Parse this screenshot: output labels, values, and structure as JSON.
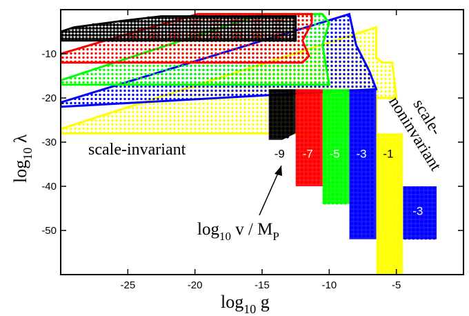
{
  "chart_data": {
    "type": "scatter",
    "xlabel": "log",
    "xlabel_sub": "10",
    "xlabel_tail": " g",
    "ylabel": "log",
    "ylabel_sub": "10",
    "ylabel_tail": " λ",
    "xlim": [
      -30,
      0
    ],
    "ylim": [
      -60,
      0
    ],
    "xticks": [
      -25,
      -20,
      -15,
      -10,
      -5
    ],
    "yticks": [
      -10,
      -20,
      -30,
      -40,
      -50
    ],
    "grid": false,
    "annotations": {
      "scale_invariant": "scale-invariant",
      "scale_noninvariant_1": "scale-",
      "scale_noninvariant_2": "noninvariant",
      "vev_main": "log",
      "vev_sub": "10",
      "vev_tail": " v / M",
      "vev_sub2": "P"
    },
    "series": [
      {
        "label": "-9",
        "color": "#000000",
        "region": [
          [
            -30,
            -5
          ],
          [
            -29,
            -4
          ],
          [
            -25.3,
            -2.5
          ],
          [
            -22.5,
            -1.5
          ],
          [
            -12.5,
            -1.5
          ],
          [
            -12.5,
            -3
          ],
          [
            -12.5,
            -7
          ],
          [
            -30,
            -7
          ]
        ],
        "dense": true,
        "block": [
          [
            -14.5,
            -18
          ],
          [
            -12.5,
            -18
          ],
          [
            -12.5,
            -28
          ],
          [
            -13.5,
            -29.5
          ],
          [
            -14.5,
            -29.5
          ]
        ]
      },
      {
        "label": "-7",
        "color": "#ff0000",
        "region": [
          [
            -30,
            -10
          ],
          [
            -25,
            -5.5
          ],
          [
            -19.8,
            -1
          ],
          [
            -11.3,
            -1
          ],
          [
            -11.3,
            -3
          ],
          [
            -12,
            -7
          ],
          [
            -11.5,
            -10.5
          ],
          [
            -12,
            -12
          ],
          [
            -30,
            -12
          ]
        ],
        "dense": false,
        "block": [
          [
            -12.5,
            -18
          ],
          [
            -10.5,
            -18
          ],
          [
            -10.5,
            -40
          ],
          [
            -12.5,
            -40
          ]
        ]
      },
      {
        "label": "-5",
        "color": "#00ff00",
        "region": [
          [
            -30,
            -16
          ],
          [
            -15,
            -1
          ],
          [
            -10.5,
            -1
          ],
          [
            -10,
            -3
          ],
          [
            -10.5,
            -8
          ],
          [
            -10,
            -17
          ],
          [
            -30,
            -17
          ]
        ],
        "dense": false,
        "block": [
          [
            -10.5,
            -18
          ],
          [
            -8.5,
            -18
          ],
          [
            -8.5,
            -44
          ],
          [
            -10.5,
            -44
          ]
        ]
      },
      {
        "label": "-3",
        "color": "#0000ff",
        "region": [
          [
            -30,
            -21
          ],
          [
            -8.5,
            -1
          ],
          [
            -8,
            -8
          ],
          [
            -7,
            -14
          ],
          [
            -6.5,
            -18
          ],
          [
            -30,
            -22
          ]
        ],
        "dense": false,
        "block": [
          [
            -8.5,
            -18
          ],
          [
            -6.5,
            -18
          ],
          [
            -6.5,
            -52
          ],
          [
            -8.5,
            -52
          ]
        ]
      },
      {
        "label": "-1",
        "color": "#ffff00",
        "region": [
          [
            -30,
            -27
          ],
          [
            -6.5,
            -4
          ],
          [
            -6.5,
            -11
          ],
          [
            -6,
            -12
          ],
          [
            -5.3,
            -12
          ],
          [
            -5,
            -20
          ],
          [
            -6.5,
            -20
          ],
          [
            -6.5,
            -28
          ],
          [
            -30,
            -28
          ]
        ],
        "dense": false,
        "block": [
          [
            -6.5,
            -28
          ],
          [
            -4.5,
            -28
          ],
          [
            -4.5,
            -60
          ],
          [
            -6.5,
            -60
          ]
        ]
      },
      {
        "label": "-3",
        "color": "#0000ff",
        "region": [],
        "dense": false,
        "block": [
          [
            -4.5,
            -40
          ],
          [
            -2,
            -40
          ],
          [
            -2,
            -52
          ],
          [
            -4.5,
            -52
          ]
        ]
      }
    ]
  }
}
